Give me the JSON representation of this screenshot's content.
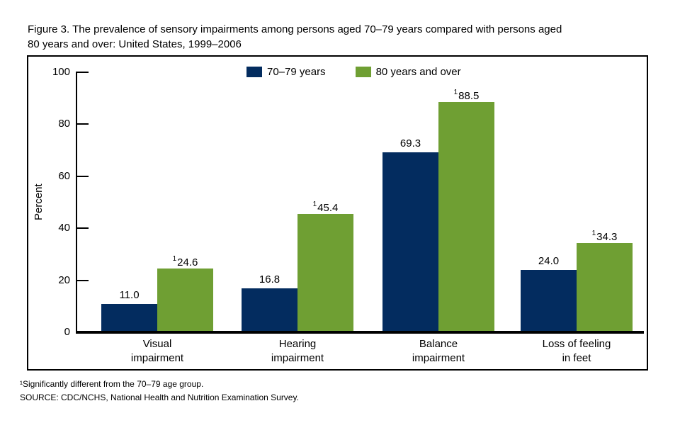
{
  "figure": {
    "title": "Figure 3. The prevalence of sensory impairments among persons aged 70–79 years compared with persons aged\n80 years and over: United States, 1999–2006"
  },
  "chart_data": {
    "type": "bar",
    "title": "The prevalence of sensory impairments among persons aged 70–79 years compared with persons aged 80 years and over: United States, 1999–2006",
    "ylabel": "Percent",
    "xlabel": "",
    "ylim": [
      0,
      100
    ],
    "yticks": [
      0,
      20,
      40,
      60,
      80,
      100
    ],
    "grid": false,
    "legend_position": "top-center",
    "categories": [
      "Visual\nimpairment",
      "Hearing\nimpairment",
      "Balance\nimpairment",
      "Loss of feeling\nin feet"
    ],
    "series": [
      {
        "name": "70–79 years",
        "color": "#032c5f",
        "values": [
          11.0,
          16.8,
          69.3,
          24.0
        ],
        "value_labels": [
          "11.0",
          "16.8",
          "69.3",
          "24.0"
        ]
      },
      {
        "name": "80 years and over",
        "color": "#6f9f33",
        "values": [
          24.6,
          45.4,
          88.5,
          34.3
        ],
        "value_labels": [
          "¹24.6",
          "¹45.4",
          "¹88.5",
          "¹34.3"
        ]
      }
    ]
  },
  "footnotes": {
    "note1": "¹Significantly different from the 70–79 age group.",
    "source": "SOURCE: CDC/NCHS, National Health and Nutrition Examination Survey."
  }
}
